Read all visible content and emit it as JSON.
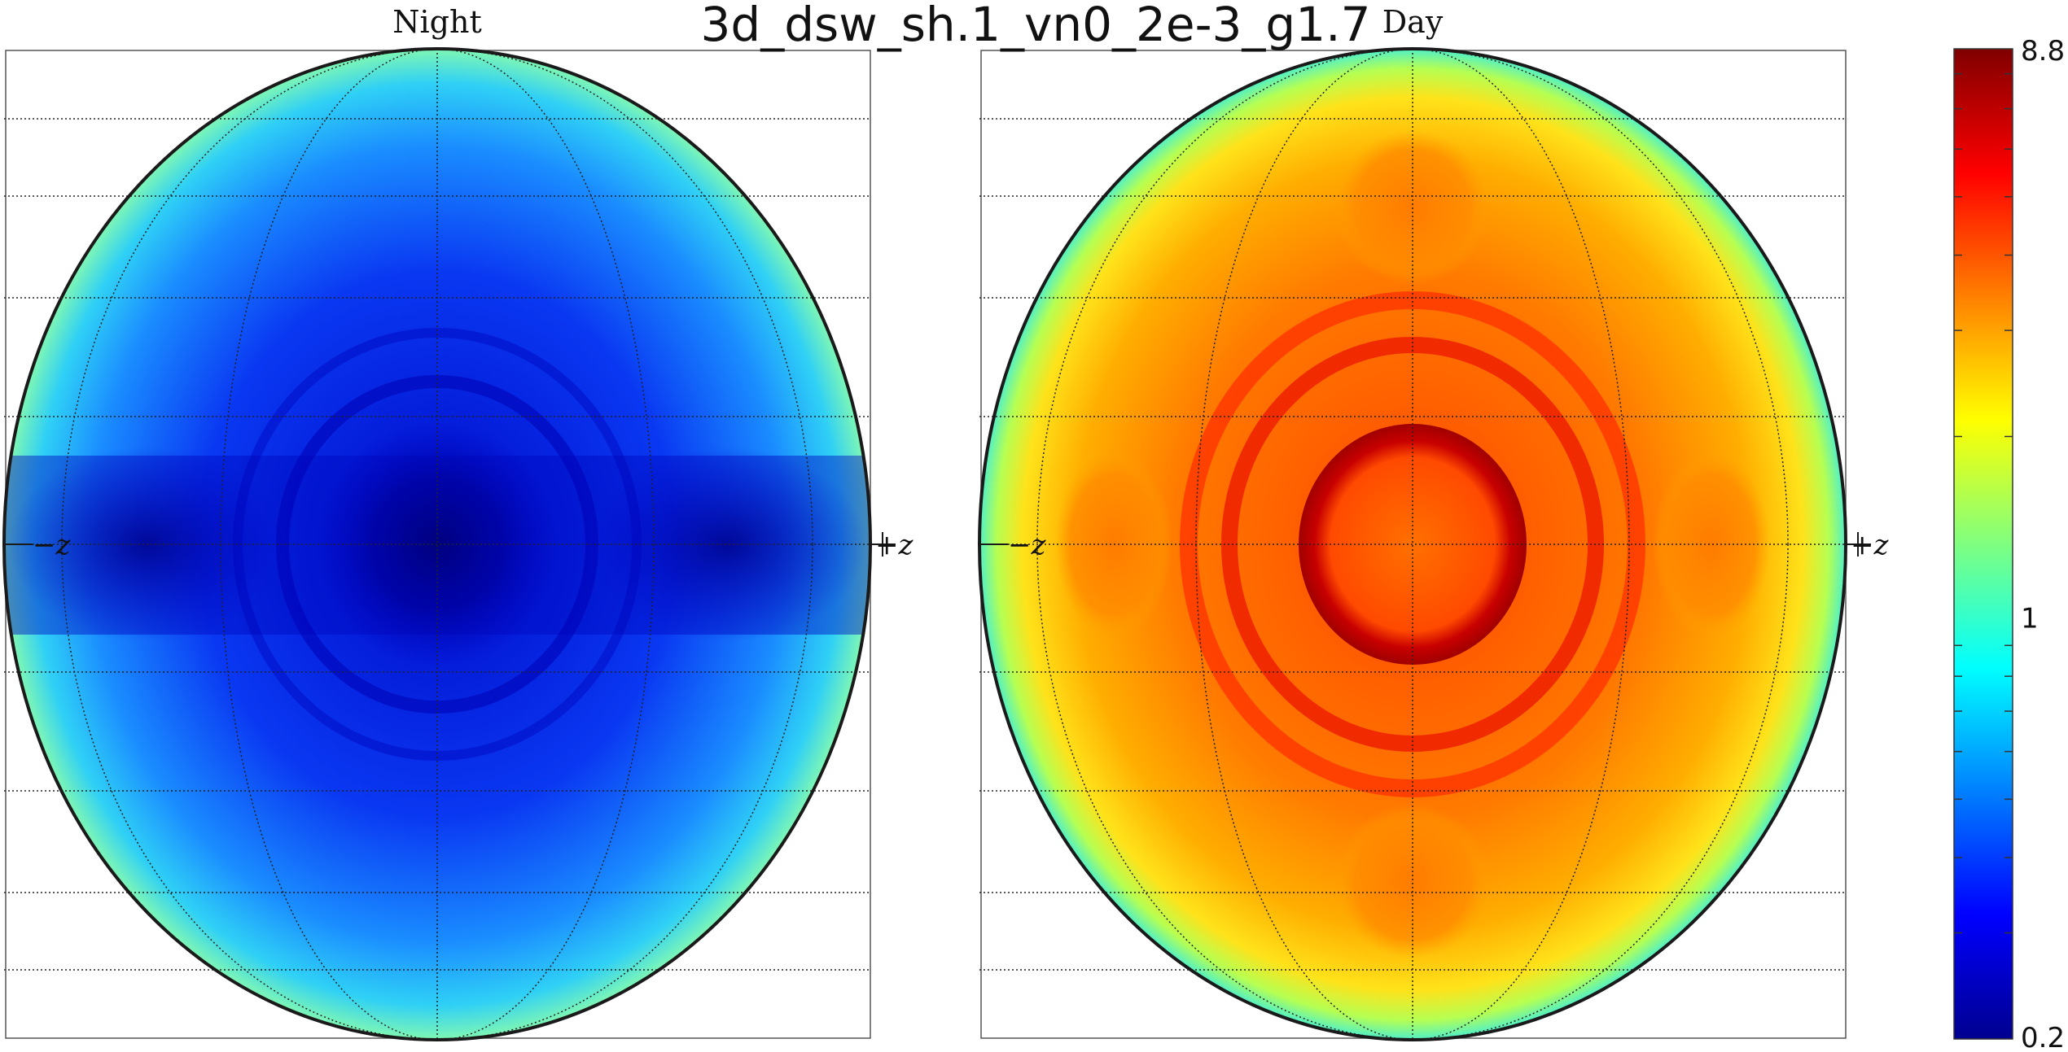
{
  "chart_data": {
    "type": "heatmap",
    "title": "3d_dsw_sh.1_vn0_2e-3_g1.7",
    "panels": [
      {
        "name": "Night",
        "left_label": "−z",
        "right_label": "+z"
      },
      {
        "name": "Day",
        "left_label": "−z",
        "right_label": "+z"
      }
    ],
    "colorbar": {
      "colormap": "jet",
      "scale": "log",
      "range": [
        0.2,
        8.8
      ],
      "tick_labels": [
        "8.8",
        "1",
        "0.2"
      ],
      "tick_values": [
        8.8,
        1,
        0.2
      ]
    },
    "grid": true
  }
}
